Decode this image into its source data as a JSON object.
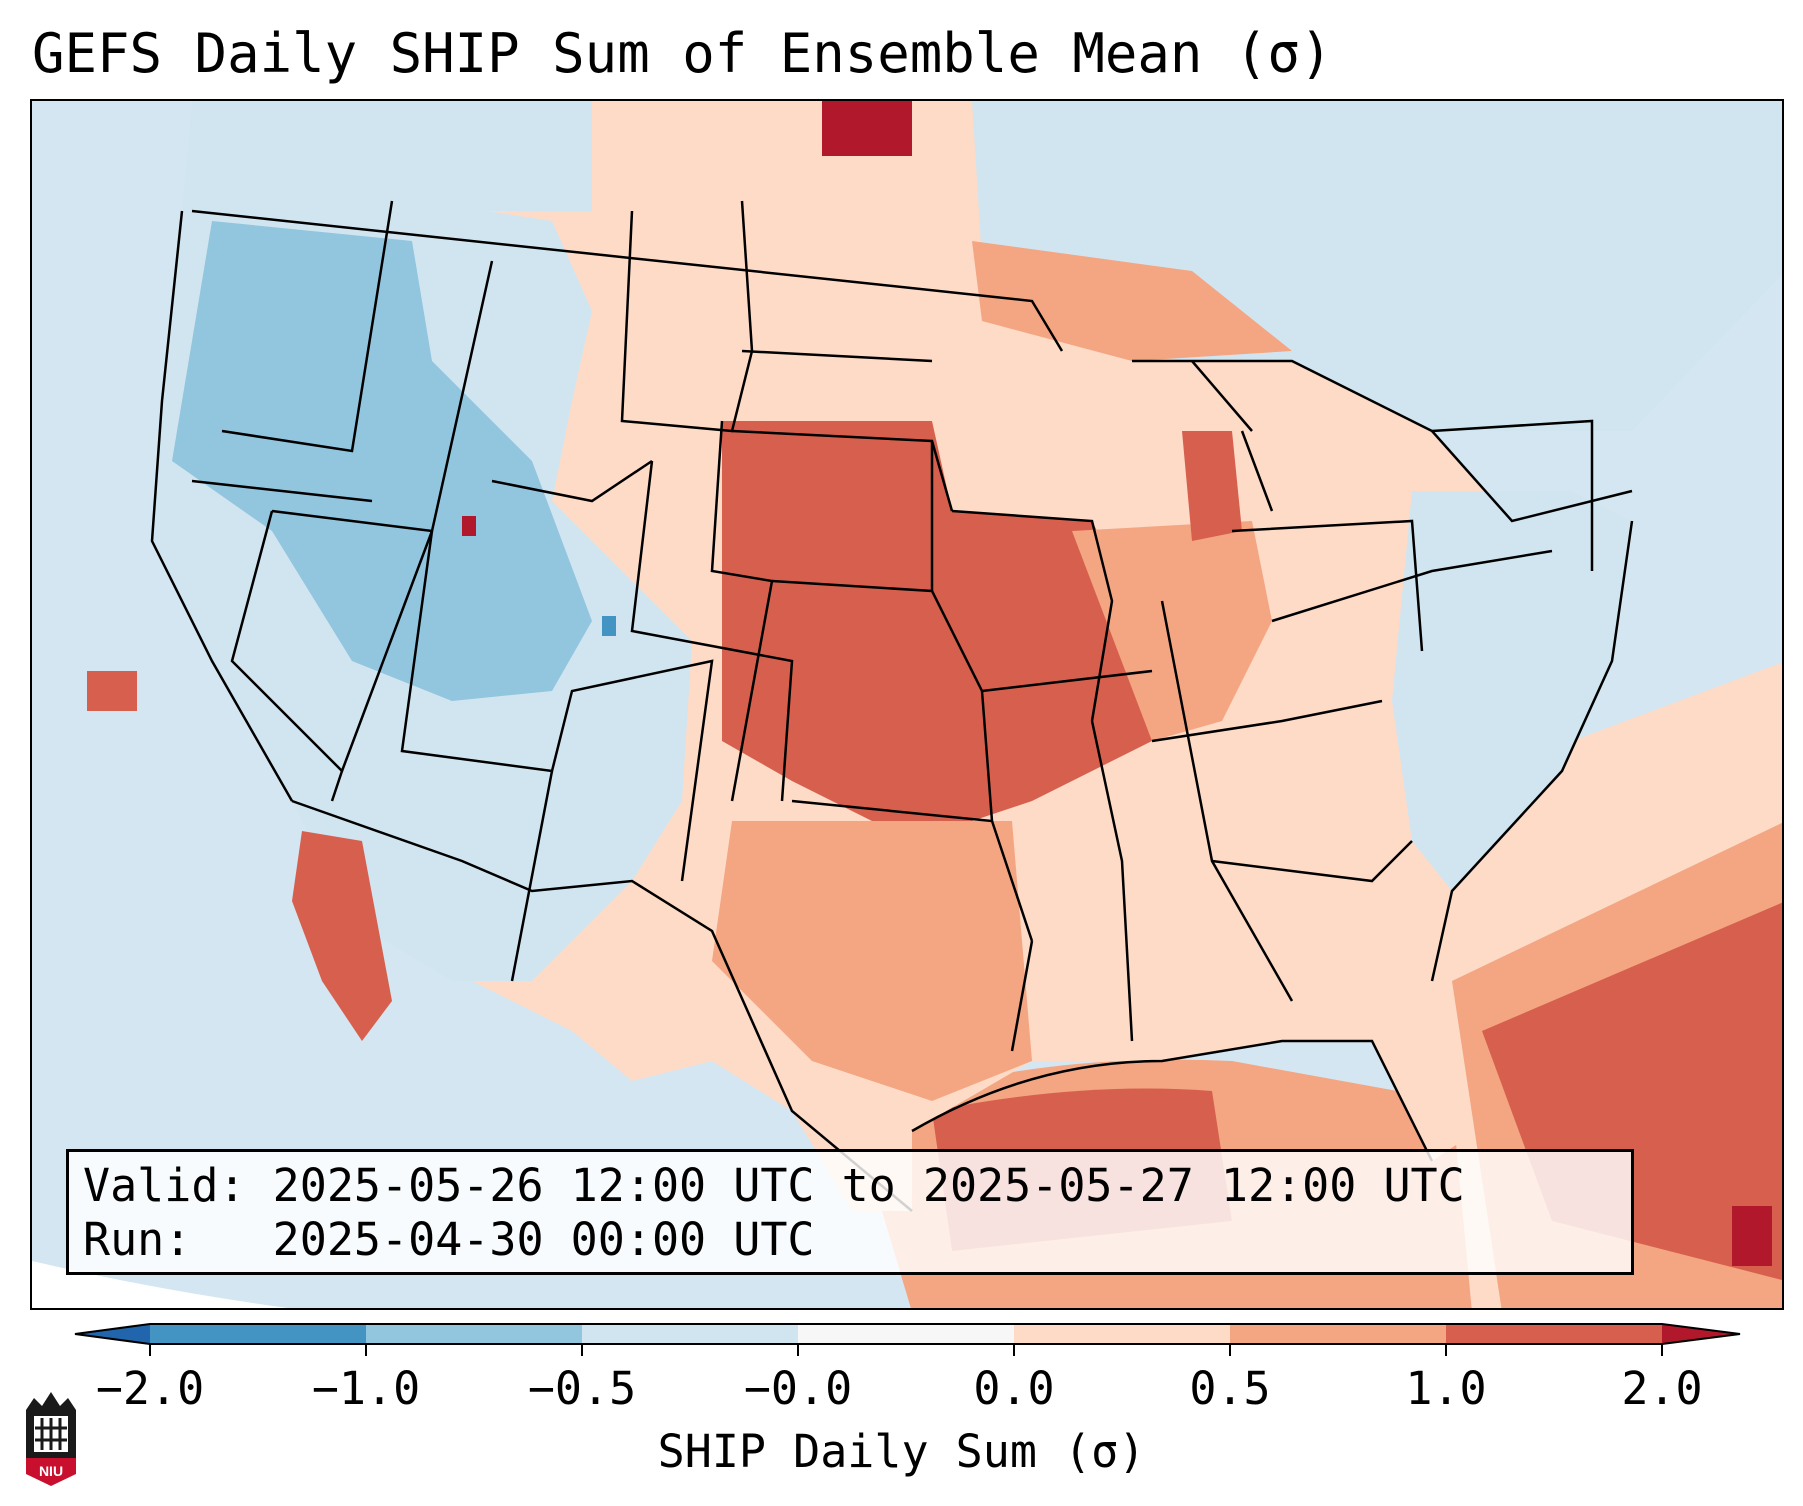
{
  "title": "GEFS Daily SHIP Sum of Ensemble Mean (σ)",
  "info": {
    "valid_label": "Valid:",
    "valid_value": "2025-05-26 12:00 UTC to 2025-05-27 12:00 UTC",
    "run_label": "Run:",
    "run_value": "2025-04-30 00:00 UTC"
  },
  "colorbar": {
    "label": "SHIP Daily Sum (σ)",
    "ticks": [
      "−2.0",
      "−1.0",
      "−0.5",
      "−0.0",
      "0.0",
      "0.5",
      "1.0",
      "2.0"
    ],
    "colors": [
      "#4393c3",
      "#92c5de",
      "#d1e5f0",
      "#f7f7f7",
      "#fddbc7",
      "#f4a582",
      "#d6604d",
      "#b2182b"
    ]
  },
  "logo": {
    "text": "NIU"
  },
  "map_colors": {
    "ocean": "#d4e6f1",
    "land_base": "#fddbc7",
    "negative_strong": "#92c5de",
    "negative_weak": "#d1e5f0",
    "positive_weak": "#fddbc7",
    "positive_mid": "#f4a582",
    "positive_strong": "#d6604d",
    "positive_extreme": "#b2182b"
  }
}
